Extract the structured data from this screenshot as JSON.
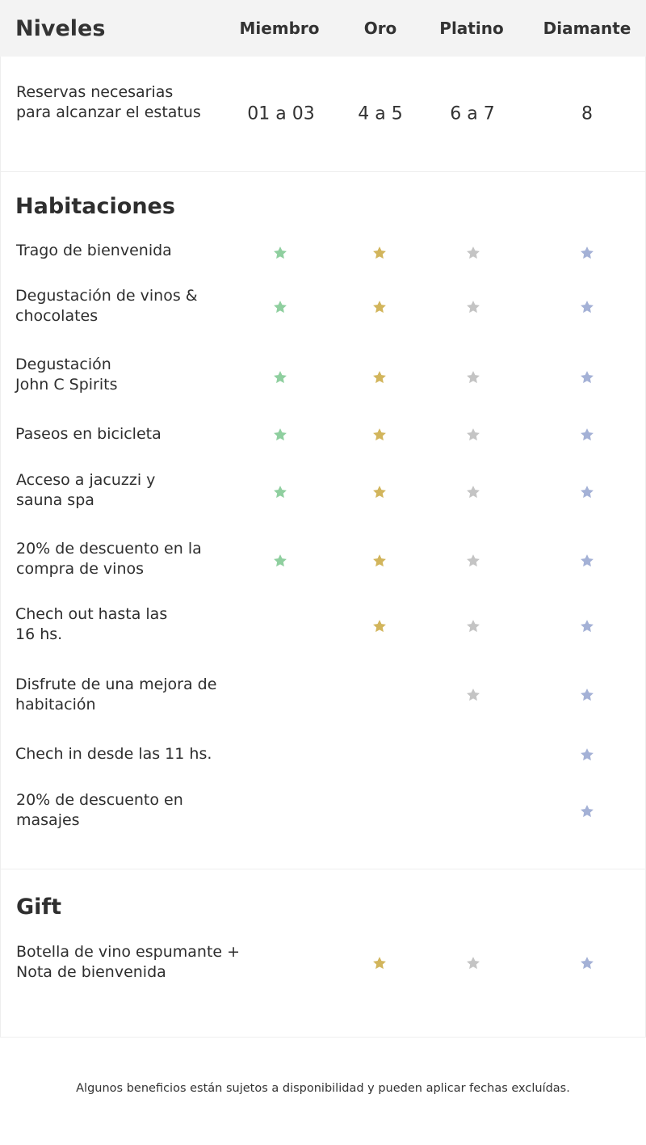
{
  "header": {
    "title": "Niveles",
    "tiers": [
      "Miembro",
      "Oro",
      "Platino",
      "Diamante"
    ]
  },
  "colors": {
    "miembro": "#8fcf9f",
    "oro": "#d2b55c",
    "platino": "#c4c4c4",
    "diamante": "#a4b1d6"
  },
  "reservations": {
    "label": "Reservas necesarias para alcanzar el estatus",
    "values": [
      "01 a 03",
      "4 a 5",
      "6 a 7",
      "8"
    ]
  },
  "rooms": {
    "title": "Habitaciones",
    "rows": [
      {
        "label": "Trago de bienvenida",
        "stars": [
          true,
          true,
          true,
          true
        ]
      },
      {
        "label": "Degustación de vinos & chocolates",
        "stars": [
          true,
          true,
          true,
          true
        ]
      },
      {
        "label": "Degustación John C Spirits",
        "stars": [
          true,
          true,
          true,
          true
        ]
      },
      {
        "label": "Paseos en bicicleta",
        "stars": [
          true,
          true,
          true,
          true
        ]
      },
      {
        "label": "Acceso a jacuzzi y sauna spa",
        "stars": [
          true,
          true,
          true,
          true
        ]
      },
      {
        "label": "20% de descuento en la compra de vinos",
        "stars": [
          true,
          true,
          true,
          true
        ]
      },
      {
        "label": "Chech out hasta las 16 hs.",
        "stars": [
          false,
          true,
          true,
          true
        ]
      },
      {
        "label": "Disfrute de una mejora de habitación",
        "stars": [
          false,
          false,
          true,
          true
        ]
      },
      {
        "label": "Chech in desde las 11 hs.",
        "stars": [
          false,
          false,
          false,
          true
        ]
      },
      {
        "label": "20% de descuento en masajes",
        "stars": [
          false,
          false,
          false,
          true
        ]
      }
    ]
  },
  "gift": {
    "title": "Gift",
    "rows": [
      {
        "label": "Botella de vino espumante + Nota de bienvenida",
        "stars": [
          false,
          true,
          true,
          true
        ]
      }
    ]
  },
  "footer": {
    "note": "Algunos beneficios están sujetos a disponibilidad y pueden aplicar fechas excluídas."
  }
}
